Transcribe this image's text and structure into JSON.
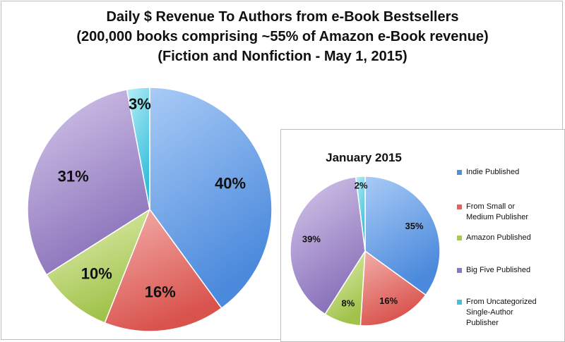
{
  "chart_data": [
    {
      "type": "pie",
      "title": "Daily $ Revenue To Authors from e-Book Bestsellers",
      "subtitle_lines": [
        "(200,000 books comprising ~55% of Amazon e-Book revenue)",
        "(Fiction and Nonfiction - May 1, 2015)"
      ],
      "categories": [
        "Indie Published",
        "From Small or Medium Publisher",
        "Amazon Published",
        "Big Five Published",
        "From Uncategorized Single-Author Publisher"
      ],
      "values": [
        40,
        16,
        10,
        31,
        3
      ],
      "labels": [
        "40%",
        "16%",
        "10%",
        "31%",
        "3%"
      ]
    },
    {
      "type": "pie",
      "title": "January 2015",
      "categories": [
        "Indie Published",
        "From Small or Medium Publisher",
        "Amazon Published",
        "Big Five Published",
        "From Uncategorized Single-Author Publisher"
      ],
      "values": [
        35,
        16,
        8,
        39,
        2
      ],
      "labels": [
        "35%",
        "16%",
        "8%",
        "39%",
        "2%"
      ]
    }
  ],
  "legend": [
    {
      "label": "Indie Published",
      "color": "#4f8fdc"
    },
    {
      "label": "From Small or\nMedium Publisher",
      "color": "#e2625c"
    },
    {
      "label": "Amazon Published",
      "color": "#a8c94e"
    },
    {
      "label": "Big Five Published",
      "color": "#8d76bd"
    },
    {
      "label": "From Uncategorized\nSingle-Author\nPublisher",
      "color": "#3fc2dc"
    }
  ],
  "colors": {
    "indie": [
      "#a9cbf6",
      "#4a89dc"
    ],
    "small_medium": [
      "#f4b0ac",
      "#d9524c"
    ],
    "amazon": [
      "#e4f1b8",
      "#a0c24a"
    ],
    "big_five": [
      "#d7c9ec",
      "#8a72ba"
    ],
    "uncategorized": [
      "#b7eef8",
      "#33bddb"
    ]
  }
}
